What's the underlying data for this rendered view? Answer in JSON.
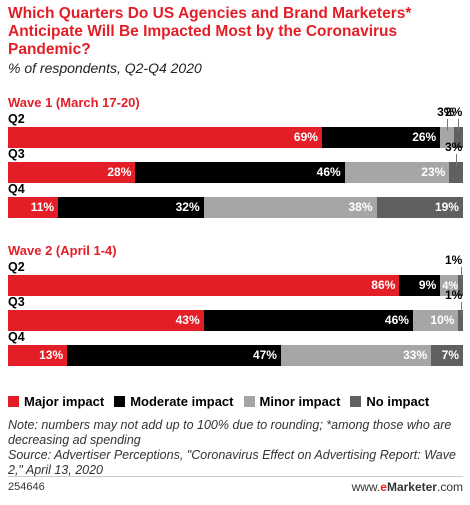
{
  "title": "Which Quarters Do US Agencies and Brand Marketers* Anticipate Will Be Impacted Most by the Coronavirus Pandemic?",
  "subtitle": "% of respondents, Q2-Q4 2020",
  "chart_data": {
    "type": "bar",
    "orientation": "horizontal",
    "stacked": true,
    "percent_labels": true,
    "colors": {
      "Major impact": "#e41e26",
      "Moderate impact": "#000000",
      "Minor impact": "#a6a6a6",
      "No impact": "#606060"
    },
    "series_names": [
      "Major impact",
      "Moderate impact",
      "Minor impact",
      "No impact"
    ],
    "groups": [
      {
        "name": "Wave 1 (March 17-20)",
        "rows": [
          {
            "label": "Q2",
            "values": [
              69,
              26,
              3,
              2
            ]
          },
          {
            "label": "Q3",
            "values": [
              28,
              46,
              23,
              3
            ]
          },
          {
            "label": "Q4",
            "values": [
              11,
              32,
              38,
              19
            ]
          }
        ]
      },
      {
        "name": "Wave 2 (April 1-4)",
        "rows": [
          {
            "label": "Q2",
            "values": [
              86,
              9,
              4,
              1
            ]
          },
          {
            "label": "Q3",
            "values": [
              43,
              46,
              10,
              1
            ]
          },
          {
            "label": "Q4",
            "values": [
              13,
              47,
              33,
              7
            ]
          }
        ]
      }
    ]
  },
  "note": "Note: numbers may not add up to 100% due to rounding; *among those who are decreasing ad spending",
  "source": "Source: Advertiser Perceptions, \"Coronavirus Effect on Advertising Report: Wave 2,\" April 13, 2020",
  "footer": {
    "chart_id": "254646",
    "brand_prefix": "www.",
    "brand_e": "e",
    "brand_name": "Marketer",
    "brand_suffix": ".com"
  }
}
